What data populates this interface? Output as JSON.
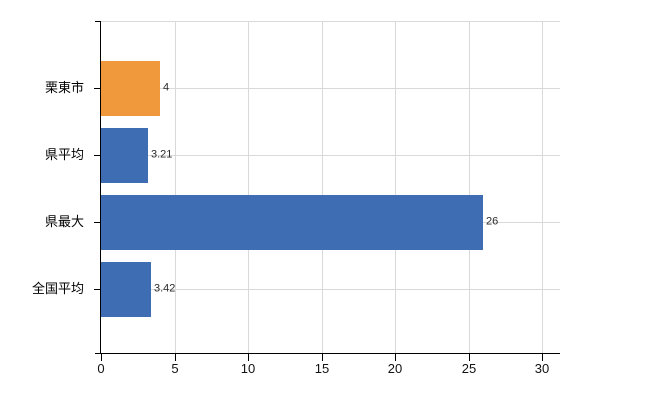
{
  "chart_data": {
    "type": "bar",
    "orientation": "horizontal",
    "title": "",
    "xlabel": "",
    "ylabel": "",
    "categories": [
      "栗東市",
      "県平均",
      "県最大",
      "全国平均"
    ],
    "values": [
      4,
      3.21,
      26,
      3.42
    ],
    "value_labels": [
      "4",
      "3.21",
      "26",
      "3.42"
    ],
    "bar_colors": [
      "#F0993C",
      "#3E6DB4",
      "#3E6DB4",
      "#3E6DB4"
    ],
    "xlim": [
      0,
      31.2
    ],
    "xticks": [
      0,
      5,
      10,
      15,
      20,
      25,
      30
    ],
    "xtick_labels": [
      "0",
      "5",
      "10",
      "15",
      "20",
      "25",
      "30"
    ],
    "grid": true,
    "legend": false,
    "colors": {
      "grid": "#D9D9D9",
      "axis": "#000000",
      "tick_label": "#111111",
      "value_label": "#2B2B2B",
      "background": "#FFFFFF"
    }
  }
}
